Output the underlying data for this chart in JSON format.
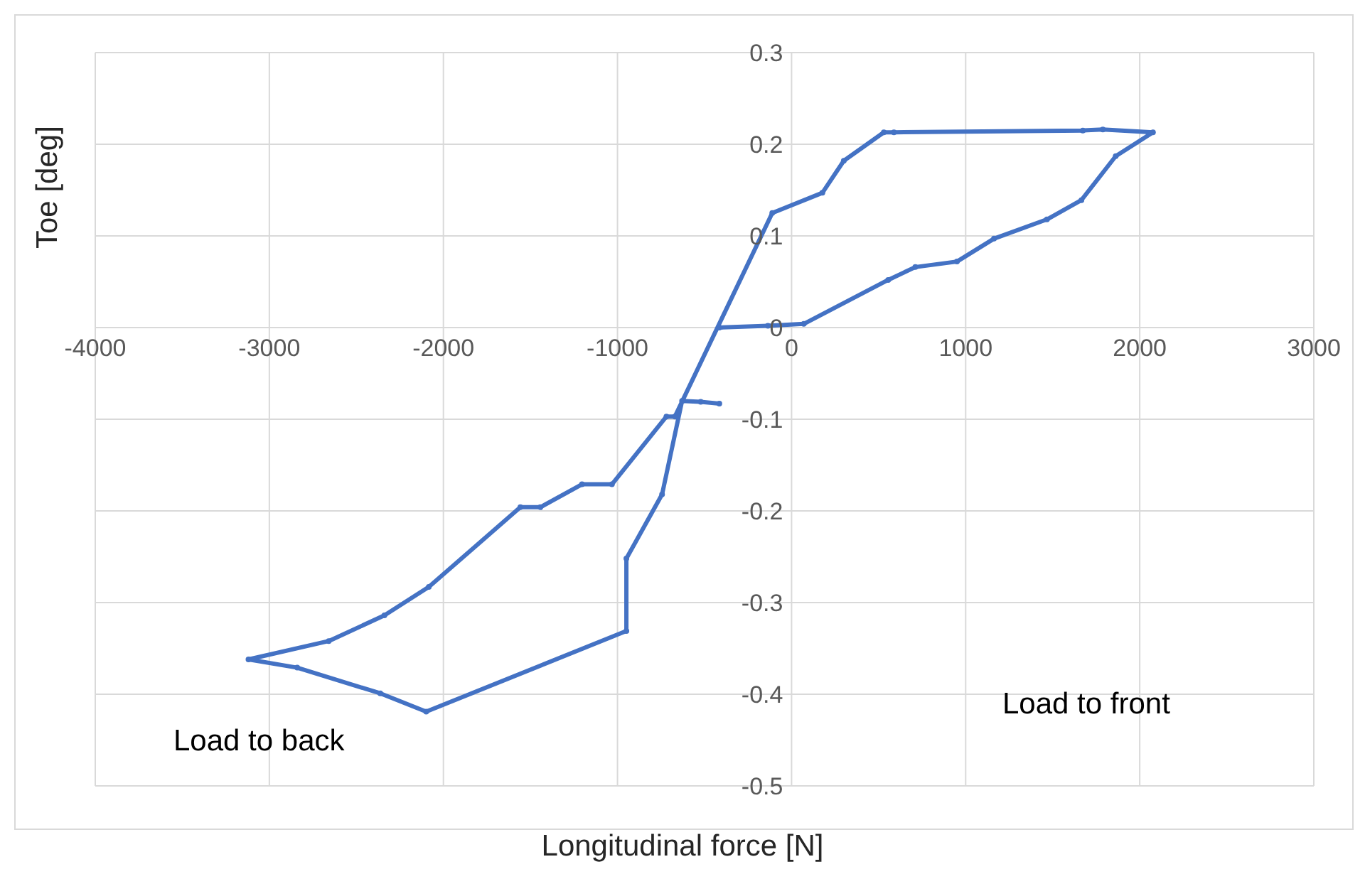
{
  "chart_data": {
    "type": "line",
    "xlabel": "Longitudinal force [N]",
    "ylabel": "Toe [deg]",
    "x": [
      -415,
      -522,
      -629,
      -744,
      -949,
      -949,
      -2099,
      -2363,
      -2840,
      -3120,
      -2659,
      -2339,
      -2084,
      -1558,
      -1443,
      -1204,
      -1032,
      -719,
      -670,
      -111,
      177,
      300,
      530,
      588,
      1673,
      1788,
      2076,
      1862,
      1665,
      1467,
      1163,
      950,
      711,
      555,
      70,
      -136,
      -415
    ],
    "series": [
      {
        "color": "#4472c4",
        "values": [
          -0.083,
          -0.081,
          -0.08,
          -0.182,
          -0.252,
          -0.331,
          -0.419,
          -0.399,
          -0.371,
          -0.362,
          -0.342,
          -0.314,
          -0.283,
          -0.196,
          -0.196,
          -0.171,
          -0.171,
          -0.097,
          -0.097,
          0.125,
          0.147,
          0.182,
          0.213,
          0.213,
          0.215,
          0.216,
          0.213,
          0.187,
          0.139,
          0.118,
          0.097,
          0.072,
          0.066,
          0.052,
          0.004,
          0.002,
          0
        ]
      }
    ],
    "xlim": [
      -4000,
      3000
    ],
    "xticks": [
      -4000,
      -3000,
      -2000,
      -1000,
      0,
      1000,
      2000,
      3000
    ],
    "ylim": [
      -0.5,
      0.3
    ],
    "yticks": [
      -0.5,
      -0.4,
      -0.3,
      -0.2,
      -0.1,
      0,
      0.1,
      0.2,
      0.3
    ],
    "grid": true,
    "marker": "circle",
    "line_style": "solid",
    "annotations": [
      "Load to back",
      "Load to front"
    ]
  }
}
